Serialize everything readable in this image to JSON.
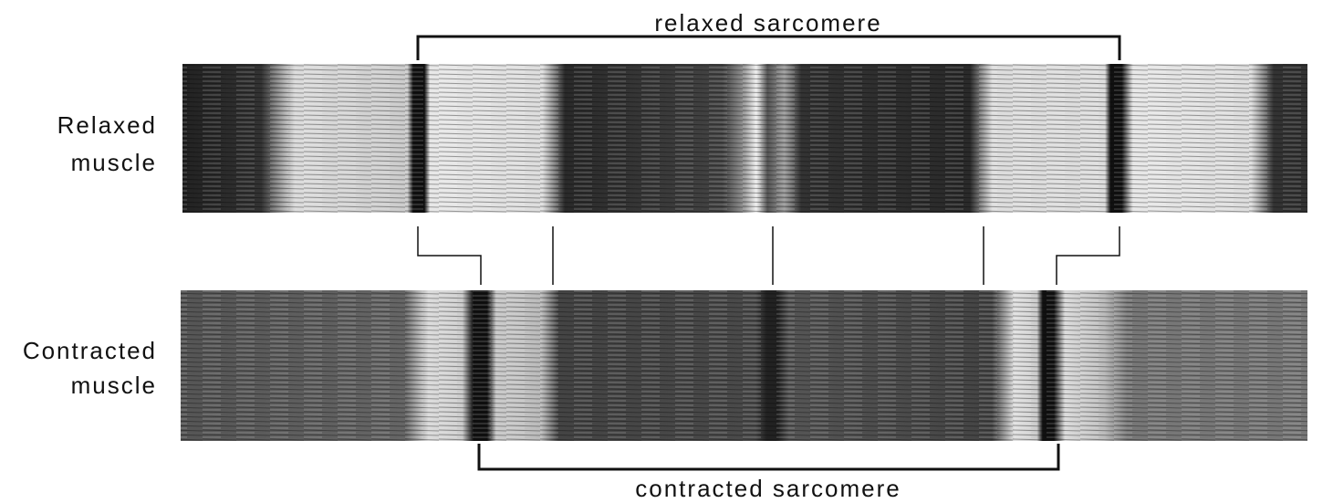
{
  "brackets": {
    "relaxed": "relaxed sarcomere",
    "contracted": "contracted sarcomere"
  },
  "rows": [
    {
      "label_lines": [
        "Relaxed",
        "muscle"
      ]
    },
    {
      "label_lines": [
        "Contracted",
        "muscle"
      ]
    }
  ]
}
